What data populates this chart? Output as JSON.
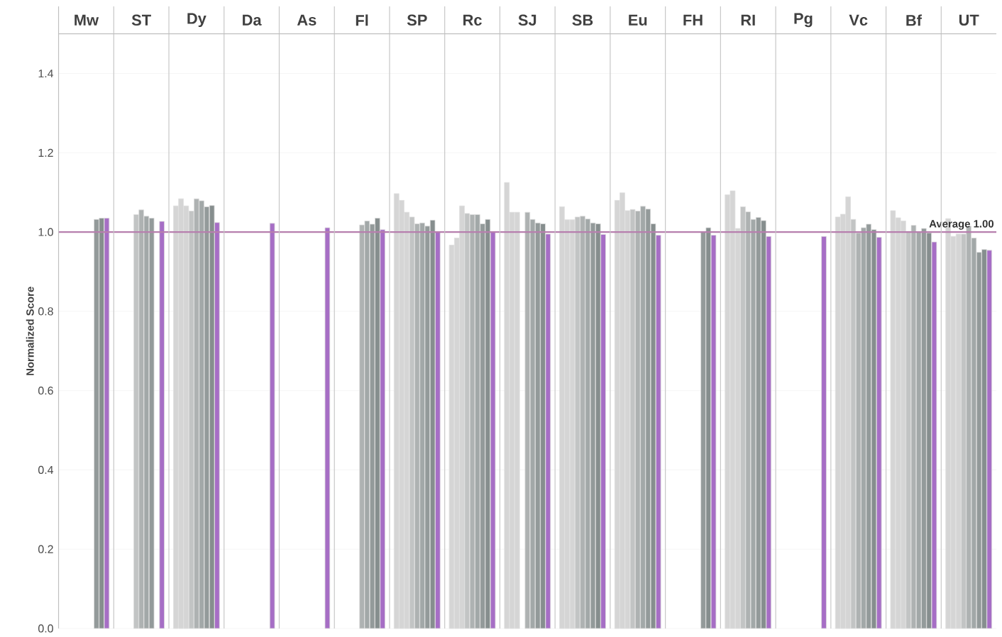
{
  "chart_data": {
    "type": "bar",
    "ylabel": "Normalized Score",
    "categories": [
      "Mw",
      "ST",
      "Dy",
      "Da",
      "As",
      "Fl",
      "SP",
      "Rc",
      "SJ",
      "SB",
      "Eu",
      "FH",
      "RI",
      "Pg",
      "Vc",
      "Bf",
      "UT"
    ],
    "series": [
      {
        "color": "#d5d5d5",
        "values": [
          null,
          null,
          1.066,
          null,
          null,
          null,
          1.097,
          0.967,
          1.125,
          1.064,
          1.08,
          null,
          1.094,
          null,
          1.038,
          1.054,
          1.034
        ]
      },
      {
        "color": "#d5d5d5",
        "values": [
          null,
          null,
          1.084,
          null,
          null,
          null,
          1.08,
          0.985,
          1.05,
          1.031,
          1.099,
          null,
          1.104,
          null,
          1.045,
          1.036,
          0.989
        ]
      },
      {
        "color": "#d5d5d5",
        "values": [
          null,
          null,
          1.066,
          null,
          null,
          null,
          1.05,
          1.066,
          1.05,
          1.031,
          1.054,
          null,
          1.009,
          null,
          1.089,
          1.028,
          0.995
        ]
      },
      {
        "color": "#c2c4c4",
        "values": [
          null,
          1.044,
          1.053,
          null,
          null,
          null,
          1.038,
          1.047,
          null,
          1.038,
          1.057,
          null,
          1.064,
          null,
          1.032,
          1.002,
          0.995
        ]
      },
      {
        "color": "#aeb2b2",
        "values": [
          null,
          1.056,
          1.084,
          null,
          null,
          1.018,
          1.021,
          1.044,
          1.05,
          1.04,
          1.053,
          null,
          1.051,
          null,
          0.998,
          1.017,
          1.015
        ]
      },
      {
        "color": "#a2a8a8",
        "values": [
          null,
          1.04,
          1.079,
          null,
          null,
          1.028,
          1.023,
          1.044,
          1.032,
          1.033,
          1.065,
          null,
          1.032,
          null,
          1.011,
          1.0,
          0.985
        ]
      },
      {
        "color": "#939a9a",
        "values": [
          1.032,
          1.035,
          1.064,
          null,
          null,
          1.02,
          1.015,
          1.021,
          1.023,
          1.023,
          1.058,
          1.001,
          1.037,
          null,
          1.02,
          1.009,
          0.949
        ]
      },
      {
        "color": "#868e8e",
        "values": [
          1.035,
          null,
          1.067,
          null,
          null,
          1.035,
          1.03,
          1.032,
          1.021,
          1.021,
          1.021,
          1.011,
          1.029,
          null,
          1.006,
          0.998,
          0.956
        ]
      },
      {
        "color": "#a66ec5",
        "values": [
          1.035,
          1.027,
          1.024,
          1.022,
          1.011,
          1.006,
          1.0,
          1.0,
          0.995,
          0.994,
          0.992,
          0.992,
          0.989,
          0.989,
          0.987,
          0.975,
          0.954
        ]
      }
    ],
    "ylim": [
      0,
      1.5
    ],
    "yticks": [
      {
        "value": 0,
        "label": "0.0"
      },
      {
        "value": 0.2,
        "label": "0.2"
      },
      {
        "value": 0.4,
        "label": "0.4"
      },
      {
        "value": 0.6,
        "label": "0.6"
      },
      {
        "value": 0.8,
        "label": "0.8"
      },
      {
        "value": 1.0,
        "label": "1.0"
      },
      {
        "value": 1.2,
        "label": "1.2"
      },
      {
        "value": 1.4,
        "label": "1.4"
      }
    ],
    "grid": "y",
    "ref_lines": [
      {
        "axis": "y",
        "value": 1.0,
        "label": "Average 1.00",
        "color": "#b77fae"
      }
    ]
  }
}
